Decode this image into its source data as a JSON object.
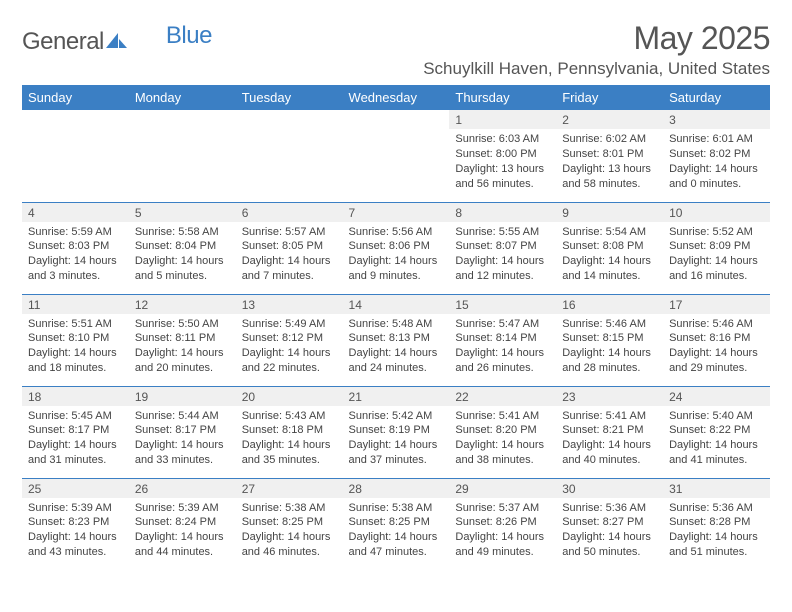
{
  "logo": {
    "text1": "General",
    "text2": "Blue"
  },
  "title": "May 2025",
  "location": "Schuylkill Haven, Pennsylvania, United States",
  "header_bg": "#3b7fc4",
  "days_of_week": [
    "Sunday",
    "Monday",
    "Tuesday",
    "Wednesday",
    "Thursday",
    "Friday",
    "Saturday"
  ],
  "cells": [
    {
      "n": "",
      "sr": "",
      "ss": "",
      "dl": ""
    },
    {
      "n": "",
      "sr": "",
      "ss": "",
      "dl": ""
    },
    {
      "n": "",
      "sr": "",
      "ss": "",
      "dl": ""
    },
    {
      "n": "",
      "sr": "",
      "ss": "",
      "dl": ""
    },
    {
      "n": "1",
      "sr": "Sunrise: 6:03 AM",
      "ss": "Sunset: 8:00 PM",
      "dl": "Daylight: 13 hours and 56 minutes."
    },
    {
      "n": "2",
      "sr": "Sunrise: 6:02 AM",
      "ss": "Sunset: 8:01 PM",
      "dl": "Daylight: 13 hours and 58 minutes."
    },
    {
      "n": "3",
      "sr": "Sunrise: 6:01 AM",
      "ss": "Sunset: 8:02 PM",
      "dl": "Daylight: 14 hours and 0 minutes."
    },
    {
      "n": "4",
      "sr": "Sunrise: 5:59 AM",
      "ss": "Sunset: 8:03 PM",
      "dl": "Daylight: 14 hours and 3 minutes."
    },
    {
      "n": "5",
      "sr": "Sunrise: 5:58 AM",
      "ss": "Sunset: 8:04 PM",
      "dl": "Daylight: 14 hours and 5 minutes."
    },
    {
      "n": "6",
      "sr": "Sunrise: 5:57 AM",
      "ss": "Sunset: 8:05 PM",
      "dl": "Daylight: 14 hours and 7 minutes."
    },
    {
      "n": "7",
      "sr": "Sunrise: 5:56 AM",
      "ss": "Sunset: 8:06 PM",
      "dl": "Daylight: 14 hours and 9 minutes."
    },
    {
      "n": "8",
      "sr": "Sunrise: 5:55 AM",
      "ss": "Sunset: 8:07 PM",
      "dl": "Daylight: 14 hours and 12 minutes."
    },
    {
      "n": "9",
      "sr": "Sunrise: 5:54 AM",
      "ss": "Sunset: 8:08 PM",
      "dl": "Daylight: 14 hours and 14 minutes."
    },
    {
      "n": "10",
      "sr": "Sunrise: 5:52 AM",
      "ss": "Sunset: 8:09 PM",
      "dl": "Daylight: 14 hours and 16 minutes."
    },
    {
      "n": "11",
      "sr": "Sunrise: 5:51 AM",
      "ss": "Sunset: 8:10 PM",
      "dl": "Daylight: 14 hours and 18 minutes."
    },
    {
      "n": "12",
      "sr": "Sunrise: 5:50 AM",
      "ss": "Sunset: 8:11 PM",
      "dl": "Daylight: 14 hours and 20 minutes."
    },
    {
      "n": "13",
      "sr": "Sunrise: 5:49 AM",
      "ss": "Sunset: 8:12 PM",
      "dl": "Daylight: 14 hours and 22 minutes."
    },
    {
      "n": "14",
      "sr": "Sunrise: 5:48 AM",
      "ss": "Sunset: 8:13 PM",
      "dl": "Daylight: 14 hours and 24 minutes."
    },
    {
      "n": "15",
      "sr": "Sunrise: 5:47 AM",
      "ss": "Sunset: 8:14 PM",
      "dl": "Daylight: 14 hours and 26 minutes."
    },
    {
      "n": "16",
      "sr": "Sunrise: 5:46 AM",
      "ss": "Sunset: 8:15 PM",
      "dl": "Daylight: 14 hours and 28 minutes."
    },
    {
      "n": "17",
      "sr": "Sunrise: 5:46 AM",
      "ss": "Sunset: 8:16 PM",
      "dl": "Daylight: 14 hours and 29 minutes."
    },
    {
      "n": "18",
      "sr": "Sunrise: 5:45 AM",
      "ss": "Sunset: 8:17 PM",
      "dl": "Daylight: 14 hours and 31 minutes."
    },
    {
      "n": "19",
      "sr": "Sunrise: 5:44 AM",
      "ss": "Sunset: 8:17 PM",
      "dl": "Daylight: 14 hours and 33 minutes."
    },
    {
      "n": "20",
      "sr": "Sunrise: 5:43 AM",
      "ss": "Sunset: 8:18 PM",
      "dl": "Daylight: 14 hours and 35 minutes."
    },
    {
      "n": "21",
      "sr": "Sunrise: 5:42 AM",
      "ss": "Sunset: 8:19 PM",
      "dl": "Daylight: 14 hours and 37 minutes."
    },
    {
      "n": "22",
      "sr": "Sunrise: 5:41 AM",
      "ss": "Sunset: 8:20 PM",
      "dl": "Daylight: 14 hours and 38 minutes."
    },
    {
      "n": "23",
      "sr": "Sunrise: 5:41 AM",
      "ss": "Sunset: 8:21 PM",
      "dl": "Daylight: 14 hours and 40 minutes."
    },
    {
      "n": "24",
      "sr": "Sunrise: 5:40 AM",
      "ss": "Sunset: 8:22 PM",
      "dl": "Daylight: 14 hours and 41 minutes."
    },
    {
      "n": "25",
      "sr": "Sunrise: 5:39 AM",
      "ss": "Sunset: 8:23 PM",
      "dl": "Daylight: 14 hours and 43 minutes."
    },
    {
      "n": "26",
      "sr": "Sunrise: 5:39 AM",
      "ss": "Sunset: 8:24 PM",
      "dl": "Daylight: 14 hours and 44 minutes."
    },
    {
      "n": "27",
      "sr": "Sunrise: 5:38 AM",
      "ss": "Sunset: 8:25 PM",
      "dl": "Daylight: 14 hours and 46 minutes."
    },
    {
      "n": "28",
      "sr": "Sunrise: 5:38 AM",
      "ss": "Sunset: 8:25 PM",
      "dl": "Daylight: 14 hours and 47 minutes."
    },
    {
      "n": "29",
      "sr": "Sunrise: 5:37 AM",
      "ss": "Sunset: 8:26 PM",
      "dl": "Daylight: 14 hours and 49 minutes."
    },
    {
      "n": "30",
      "sr": "Sunrise: 5:36 AM",
      "ss": "Sunset: 8:27 PM",
      "dl": "Daylight: 14 hours and 50 minutes."
    },
    {
      "n": "31",
      "sr": "Sunrise: 5:36 AM",
      "ss": "Sunset: 8:28 PM",
      "dl": "Daylight: 14 hours and 51 minutes."
    }
  ]
}
